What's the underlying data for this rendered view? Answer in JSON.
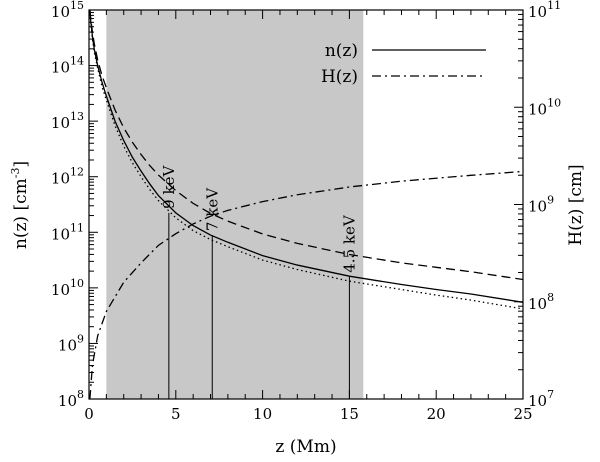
{
  "chart_data": {
    "type": "line",
    "xlabel": "z (Mm)",
    "ylabel_left_main": "n(z) [cm",
    "ylabel_left_sup": "-3",
    "ylabel_left_end": "]",
    "ylabel_right": "H(z) [cm]",
    "x_range": [
      0,
      25
    ],
    "x_ticks": [
      0,
      5,
      10,
      15,
      20,
      25
    ],
    "x_tick_labels": [
      "0",
      "5",
      "10",
      "15",
      "20",
      "25"
    ],
    "y_left_range_log10": [
      8,
      15
    ],
    "y_left_ticks_log10": [
      8,
      9,
      10,
      11,
      12,
      13,
      14,
      15
    ],
    "y_left_tick_base": "10",
    "y_left_tick_exponents": [
      "8",
      "9",
      "10",
      "11",
      "12",
      "13",
      "14",
      "15"
    ],
    "y_right_range_log10": [
      7,
      11
    ],
    "y_right_ticks_log10": [
      7,
      8,
      9,
      10,
      11
    ],
    "y_right_tick_base": "10",
    "y_right_tick_exponents": [
      "7",
      "8",
      "9",
      "10",
      "11"
    ],
    "y_scale": "log",
    "grid": false,
    "legend_placement": "top-right",
    "shaded_region": {
      "x": [
        1.0,
        15.8
      ],
      "color": "#c8c8c8"
    },
    "series": [
      {
        "name": "n(z)",
        "axis": "left",
        "style": "solid",
        "x": [
          0.05,
          0.1,
          0.2,
          0.3,
          0.5,
          0.75,
          1,
          1.5,
          2,
          2.5,
          3,
          3.5,
          4,
          5,
          6,
          7,
          8,
          10,
          12,
          15,
          18,
          20,
          22,
          25
        ],
        "y_log10": [
          15.0,
          14.8,
          14.52,
          14.3,
          14.0,
          13.7,
          13.45,
          13.0,
          12.65,
          12.35,
          12.1,
          11.87,
          11.66,
          11.35,
          11.12,
          10.95,
          10.82,
          10.58,
          10.41,
          10.21,
          10.06,
          9.97,
          9.89,
          9.74
        ]
      },
      {
        "name": "H(z)",
        "axis": "right",
        "style": "dashdot",
        "x": [
          0.05,
          0.2,
          0.5,
          1,
          1.5,
          2,
          3,
          4,
          5,
          6,
          7,
          8,
          10,
          12,
          15,
          18,
          20,
          22,
          25
        ],
        "y_log10": [
          7.0,
          7.35,
          7.65,
          7.9,
          8.05,
          8.2,
          8.4,
          8.58,
          8.7,
          8.8,
          8.88,
          8.94,
          9.03,
          9.1,
          9.18,
          9.24,
          9.27,
          9.3,
          9.34
        ]
      },
      {
        "axis": "left",
        "style": "dashed",
        "x": [
          0.05,
          0.1,
          0.2,
          0.3,
          0.5,
          0.75,
          1,
          1.5,
          2,
          2.5,
          3,
          3.5,
          4,
          5,
          6,
          7,
          8,
          10,
          12,
          15,
          18,
          20,
          22,
          25
        ],
        "y_log10": [
          15.0,
          14.85,
          14.6,
          14.4,
          14.1,
          13.82,
          13.6,
          13.2,
          12.88,
          12.62,
          12.4,
          12.2,
          12.03,
          11.75,
          11.52,
          11.34,
          11.2,
          10.97,
          10.8,
          10.6,
          10.45,
          10.37,
          10.29,
          10.15
        ]
      },
      {
        "axis": "left",
        "style": "dotted",
        "x": [
          0.05,
          0.1,
          0.2,
          0.3,
          0.5,
          0.75,
          1,
          1.5,
          2,
          2.5,
          3,
          3.5,
          4,
          5,
          6,
          7,
          8,
          10,
          12,
          15,
          18,
          20,
          22,
          25
        ],
        "y_log10": [
          14.95,
          14.75,
          14.47,
          14.25,
          13.95,
          13.62,
          13.38,
          12.92,
          12.55,
          12.25,
          12.0,
          11.77,
          11.57,
          11.26,
          11.03,
          10.87,
          10.74,
          10.5,
          10.33,
          10.12,
          9.97,
          9.87,
          9.78,
          9.62
        ]
      }
    ],
    "annotations": [
      {
        "label": "9 keV",
        "x": 4.6,
        "y_log10": 11.35
      },
      {
        "label": "7 keV",
        "x": 7.1,
        "y_log10": 10.95
      },
      {
        "label": "4.5 keV",
        "x": 15.0,
        "y_log10": 10.2
      }
    ]
  }
}
